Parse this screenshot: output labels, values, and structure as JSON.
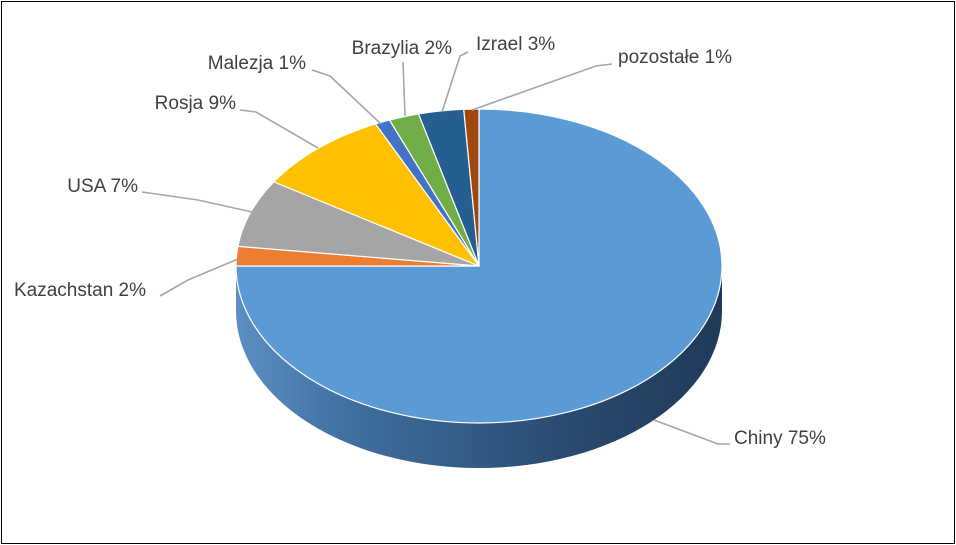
{
  "chart_data": {
    "type": "pie",
    "style": "3d",
    "title": "",
    "legend": "none",
    "slices": [
      {
        "label": "Chiny",
        "value": 75,
        "display": "Chiny 75%",
        "color": "#5b9bd5",
        "side_color": "#41719c"
      },
      {
        "label": "Kazachstan",
        "value": 2,
        "display": "Kazachstan 2%",
        "color": "#ed7d31",
        "side_color": "#ae5a21"
      },
      {
        "label": "USA",
        "value": 7,
        "display": "USA 7%",
        "color": "#a5a5a5",
        "side_color": "#787878"
      },
      {
        "label": "Rosja",
        "value": 9,
        "display": "Rosja 9%",
        "color": "#ffc000",
        "side_color": "#bc8c00"
      },
      {
        "label": "Malezja",
        "value": 1,
        "display": "Malezja 1%",
        "color": "#4472c4",
        "side_color": "#2f528f"
      },
      {
        "label": "Brazylia",
        "value": 2,
        "display": "Brazylia 2%",
        "color": "#70ad47",
        "side_color": "#507e32"
      },
      {
        "label": "Izrael",
        "value": 3,
        "display": "Izrael 3%",
        "color": "#255e91",
        "side_color": "#1a4468"
      },
      {
        "label": "pozostałe",
        "value": 1,
        "display": "pozostałe 1%",
        "color": "#9e480e",
        "side_color": "#72340a"
      }
    ]
  }
}
